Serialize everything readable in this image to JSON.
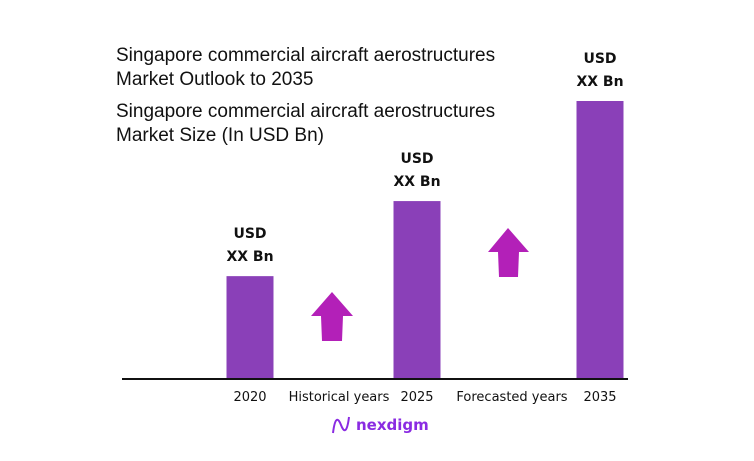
{
  "title_line1": "Singapore commercial aircraft aerostructures",
  "title_line2": "Market Outlook to 2035",
  "subtitle_line1": "Singapore commercial aircraft aerostructures",
  "subtitle_line2": "Market Size (In USD Bn)",
  "logo_text": "nexdigm",
  "colors": {
    "bar": "#8a40b8",
    "arrow": "#b320b8",
    "axis": "#111111"
  },
  "chart_data": {
    "type": "bar",
    "categories": [
      "2020",
      "2025",
      "2035"
    ],
    "values": [
      37,
      64,
      100
    ],
    "ylim": [
      0,
      100
    ],
    "data_labels": [
      [
        "USD",
        "XX Bn"
      ],
      [
        "USD",
        "XX Bn"
      ],
      [
        "USD",
        "XX Bn"
      ]
    ],
    "annotations": [
      "Historical years",
      "Forecasted years"
    ],
    "grid": false,
    "legend": "none"
  }
}
